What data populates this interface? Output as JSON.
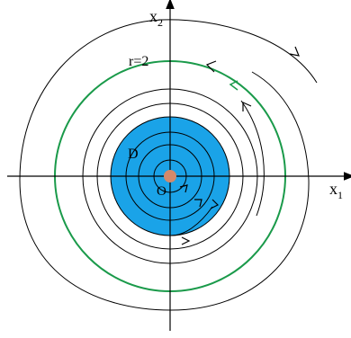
{
  "labels": {
    "x1_letter": "x",
    "x1_sub": "1",
    "x2_letter": "x",
    "x2_sub": "2",
    "region": "D",
    "origin": "O",
    "radius": "r=2"
  },
  "colors": {
    "region_fill": "#1aa3e8",
    "origin_dot": "#d4896a",
    "limit_cycle": "#1a9a4a",
    "curves": "#000000"
  }
}
